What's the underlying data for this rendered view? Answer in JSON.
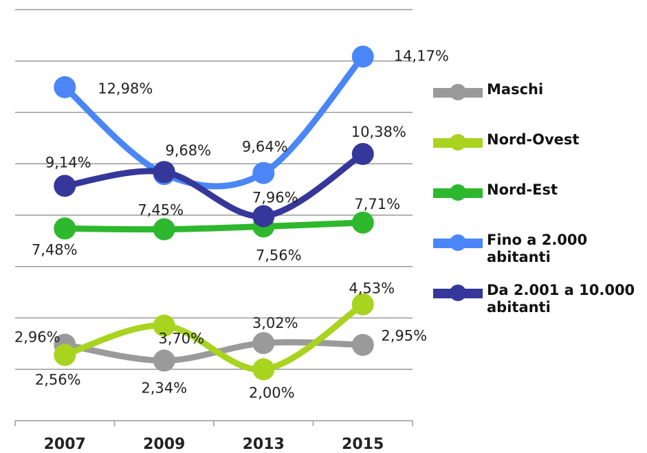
{
  "chart_data": {
    "type": "line",
    "categories": [
      "2007",
      "2009",
      "2013",
      "2015"
    ],
    "series": [
      {
        "name": "Maschi",
        "color": "#9a9a9a",
        "values": [
          2.96,
          2.34,
          3.02,
          2.95
        ],
        "value_labels": [
          "2,96%",
          "2,34%",
          "3,02%",
          "2,95%"
        ]
      },
      {
        "name": "Nord-Ovest",
        "color": "#a8d420",
        "values": [
          2.56,
          3.7,
          2.0,
          4.53
        ],
        "value_labels": [
          "2,56%",
          "3,70%",
          "2,00%",
          "4,53%"
        ]
      },
      {
        "name": "Nord-Est",
        "color": "#2db82d",
        "values": [
          7.48,
          7.45,
          7.56,
          7.71
        ],
        "value_labels": [
          "7,48%",
          "7,45%",
          "7,56%",
          "7,71%"
        ]
      },
      {
        "name": "Fino a 2.000 abitanti",
        "color": "#4a86f7",
        "values": [
          12.98,
          9.6,
          9.64,
          14.17
        ],
        "value_labels": [
          "12,98%",
          null,
          "9,64%",
          "14,17%"
        ]
      },
      {
        "name": "Da 2.001 a 10.000 abitanti",
        "color": "#35379a",
        "values": [
          9.14,
          9.68,
          7.96,
          10.38
        ],
        "value_labels": [
          "9,14%",
          "9,68%",
          "7,96%",
          "10,38%"
        ]
      }
    ],
    "ylim": [
      0,
      16
    ],
    "yticks": [
      0,
      2,
      4,
      6,
      8,
      10,
      12,
      14,
      16
    ],
    "grid": true,
    "smooth": true,
    "legend": "right"
  }
}
